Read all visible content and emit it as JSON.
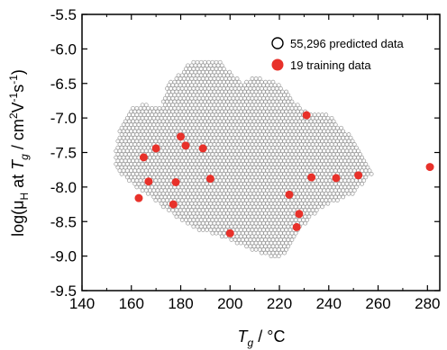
{
  "chart_data": {
    "type": "scatter",
    "xlabel": {
      "symbol": "T",
      "subscript": "g",
      "unit": "°C"
    },
    "ylabel": {
      "prefix": "log(μ",
      "sub": "H",
      "mid": " at ",
      "t": "T",
      "tsub": "g",
      "unit": " / cm",
      "sup2": "2",
      "v": "V",
      "supm1a": "-1",
      "s": "s",
      "supm1b": "-1",
      "close": ")"
    },
    "xlim": [
      140,
      285
    ],
    "ylim": [
      -9.5,
      -5.5
    ],
    "xticks": [
      "140",
      "160",
      "180",
      "200",
      "220",
      "240",
      "260",
      "280"
    ],
    "xtick_values": [
      140,
      160,
      180,
      200,
      220,
      240,
      260,
      280
    ],
    "yticks": [
      "-5.5",
      "-6.0",
      "-6.5",
      "-7.0",
      "-7.5",
      "-8.0",
      "-8.5",
      "-9.0",
      "-9.5"
    ],
    "ytick_values": [
      -5.5,
      -6.0,
      -6.5,
      -7.0,
      -7.5,
      -8.0,
      -8.5,
      -9.0,
      -9.5
    ],
    "legend": {
      "position": "top-right",
      "entries": [
        "55,296 predicted data",
        "19 training data"
      ]
    },
    "series": [
      {
        "name": "55,296 predicted data",
        "marker": "open-circle",
        "color": "#9a9a9a",
        "region_polygon": [
          [
            153,
            -7.55
          ],
          [
            155,
            -7.2
          ],
          [
            160,
            -6.85
          ],
          [
            165,
            -6.8
          ],
          [
            172,
            -6.85
          ],
          [
            175,
            -6.5
          ],
          [
            180,
            -6.35
          ],
          [
            185,
            -6.15
          ],
          [
            195,
            -6.15
          ],
          [
            205,
            -6.5
          ],
          [
            210,
            -6.4
          ],
          [
            220,
            -6.5
          ],
          [
            230,
            -6.9
          ],
          [
            240,
            -6.95
          ],
          [
            250,
            -7.3
          ],
          [
            258,
            -7.8
          ],
          [
            250,
            -8.1
          ],
          [
            243,
            -8.2
          ],
          [
            237,
            -8.3
          ],
          [
            230,
            -8.55
          ],
          [
            225,
            -8.85
          ],
          [
            220,
            -9.05
          ],
          [
            212,
            -8.95
          ],
          [
            205,
            -8.85
          ],
          [
            195,
            -8.7
          ],
          [
            185,
            -8.6
          ],
          [
            175,
            -8.35
          ],
          [
            168,
            -8.15
          ],
          [
            160,
            -7.95
          ],
          [
            154,
            -7.75
          ]
        ]
      },
      {
        "name": "19 training data",
        "marker": "filled-circle",
        "color": "#e8312a",
        "points": [
          [
            163,
            -8.16
          ],
          [
            165,
            -7.57
          ],
          [
            167,
            -7.92
          ],
          [
            170,
            -7.44
          ],
          [
            177,
            -8.25
          ],
          [
            178,
            -7.93
          ],
          [
            180,
            -7.27
          ],
          [
            182,
            -7.4
          ],
          [
            189,
            -7.44
          ],
          [
            192,
            -7.88
          ],
          [
            200,
            -8.67
          ],
          [
            224,
            -8.11
          ],
          [
            227,
            -8.58
          ],
          [
            228,
            -8.39
          ],
          [
            231,
            -6.96
          ],
          [
            233,
            -7.86
          ],
          [
            243,
            -7.87
          ],
          [
            252,
            -7.83
          ],
          [
            281,
            -7.71
          ]
        ]
      }
    ]
  }
}
